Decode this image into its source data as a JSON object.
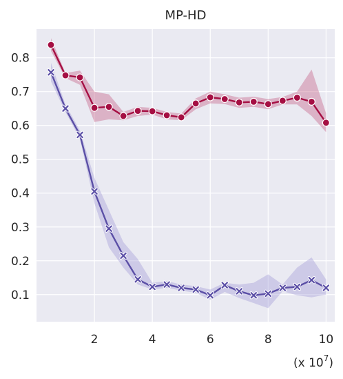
{
  "chart_data": {
    "type": "line",
    "title": "MP-HD",
    "xlabel": "",
    "ylabel": "",
    "x_scale_label": "(x 10^7)",
    "x_scale_base": "(x 10",
    "x_scale_exp": "7",
    "x_scale_close": ")",
    "xlim": [
      0.0,
      10.3
    ],
    "ylim": [
      0.02,
      0.885
    ],
    "xticks": [
      2,
      4,
      6,
      8,
      10
    ],
    "xtick_labels": [
      "2",
      "4",
      "6",
      "8",
      "10"
    ],
    "yticks": [
      0.1,
      0.2,
      0.3,
      0.4,
      0.5,
      0.6,
      0.7,
      0.8
    ],
    "ytick_labels": [
      "0.1",
      "0.2",
      "0.3",
      "0.4",
      "0.5",
      "0.6",
      "0.7",
      "0.8"
    ],
    "grid": true,
    "legend": "none",
    "x": [
      0.5,
      1,
      1.5,
      2,
      2.5,
      3,
      3.5,
      4,
      4.5,
      5,
      5.5,
      6,
      6.5,
      7,
      7.5,
      8,
      8.5,
      9,
      9.5,
      10
    ],
    "series": [
      {
        "color": "#a50f43",
        "fill_color": "#c2577f",
        "marker": "circle",
        "values": [
          0.838,
          0.748,
          0.742,
          0.652,
          0.655,
          0.628,
          0.643,
          0.642,
          0.63,
          0.624,
          0.665,
          0.683,
          0.678,
          0.668,
          0.67,
          0.663,
          0.673,
          0.682,
          0.67,
          0.608
        ],
        "lower": [
          0.82,
          0.74,
          0.72,
          0.61,
          0.618,
          0.615,
          0.628,
          0.632,
          0.618,
          0.615,
          0.648,
          0.665,
          0.663,
          0.652,
          0.655,
          0.648,
          0.662,
          0.662,
          0.628,
          0.58
        ],
        "upper": [
          0.858,
          0.755,
          0.762,
          0.7,
          0.692,
          0.64,
          0.655,
          0.652,
          0.64,
          0.635,
          0.68,
          0.7,
          0.692,
          0.682,
          0.685,
          0.678,
          0.684,
          0.7,
          0.765,
          0.636
        ]
      },
      {
        "color": "#5b4fa6",
        "fill_color": "#9f97d4",
        "marker": "x",
        "values": [
          0.757,
          0.65,
          0.572,
          0.405,
          0.295,
          0.215,
          0.145,
          0.123,
          0.13,
          0.12,
          0.115,
          0.098,
          0.128,
          0.11,
          0.098,
          0.103,
          0.12,
          0.123,
          0.143,
          0.12
        ],
        "lower": [
          0.73,
          0.64,
          0.56,
          0.37,
          0.24,
          0.18,
          0.13,
          0.115,
          0.12,
          0.112,
          0.105,
          0.085,
          0.108,
          0.09,
          0.075,
          0.06,
          0.11,
          0.098,
          0.092,
          0.1
        ],
        "upper": [
          0.785,
          0.662,
          0.585,
          0.445,
          0.35,
          0.255,
          0.205,
          0.135,
          0.14,
          0.13,
          0.125,
          0.115,
          0.135,
          0.13,
          0.135,
          0.16,
          0.13,
          0.18,
          0.21,
          0.145
        ]
      }
    ]
  }
}
